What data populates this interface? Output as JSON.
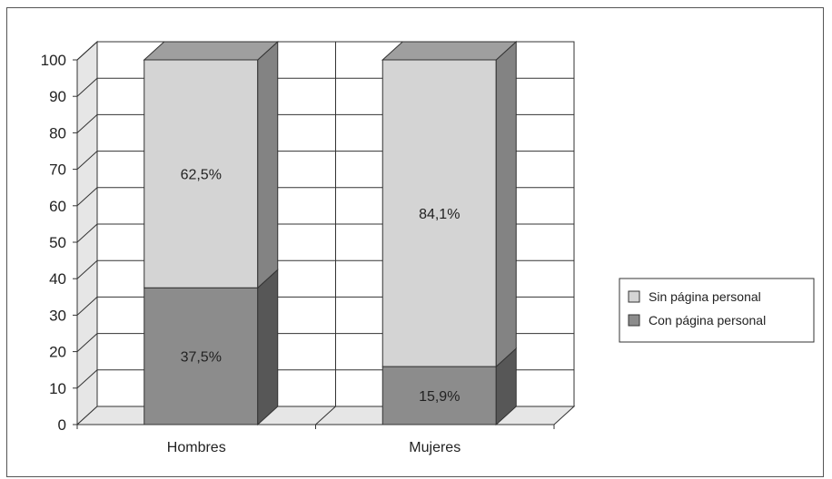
{
  "chart_data": {
    "type": "bar",
    "stacked": true,
    "three_d": true,
    "categories": [
      "Hombres",
      "Mujeres"
    ],
    "series": [
      {
        "name": "Con página personal",
        "values": [
          37.5,
          15.9
        ],
        "labels": [
          "37,5%",
          "15,9%"
        ],
        "color": "#8c8c8c"
      },
      {
        "name": "Sin página personal",
        "values": [
          62.5,
          84.1
        ],
        "labels": [
          "62,5%",
          "84,1%"
        ],
        "color": "#d4d4d4"
      }
    ],
    "ylim": [
      0,
      100
    ],
    "yticks": [
      "0",
      "10",
      "20",
      "30",
      "40",
      "50",
      "60",
      "70",
      "80",
      "90",
      "100"
    ],
    "grid": true,
    "legend_position": "right",
    "legend_order": [
      "Sin página personal",
      "Con página personal"
    ]
  }
}
